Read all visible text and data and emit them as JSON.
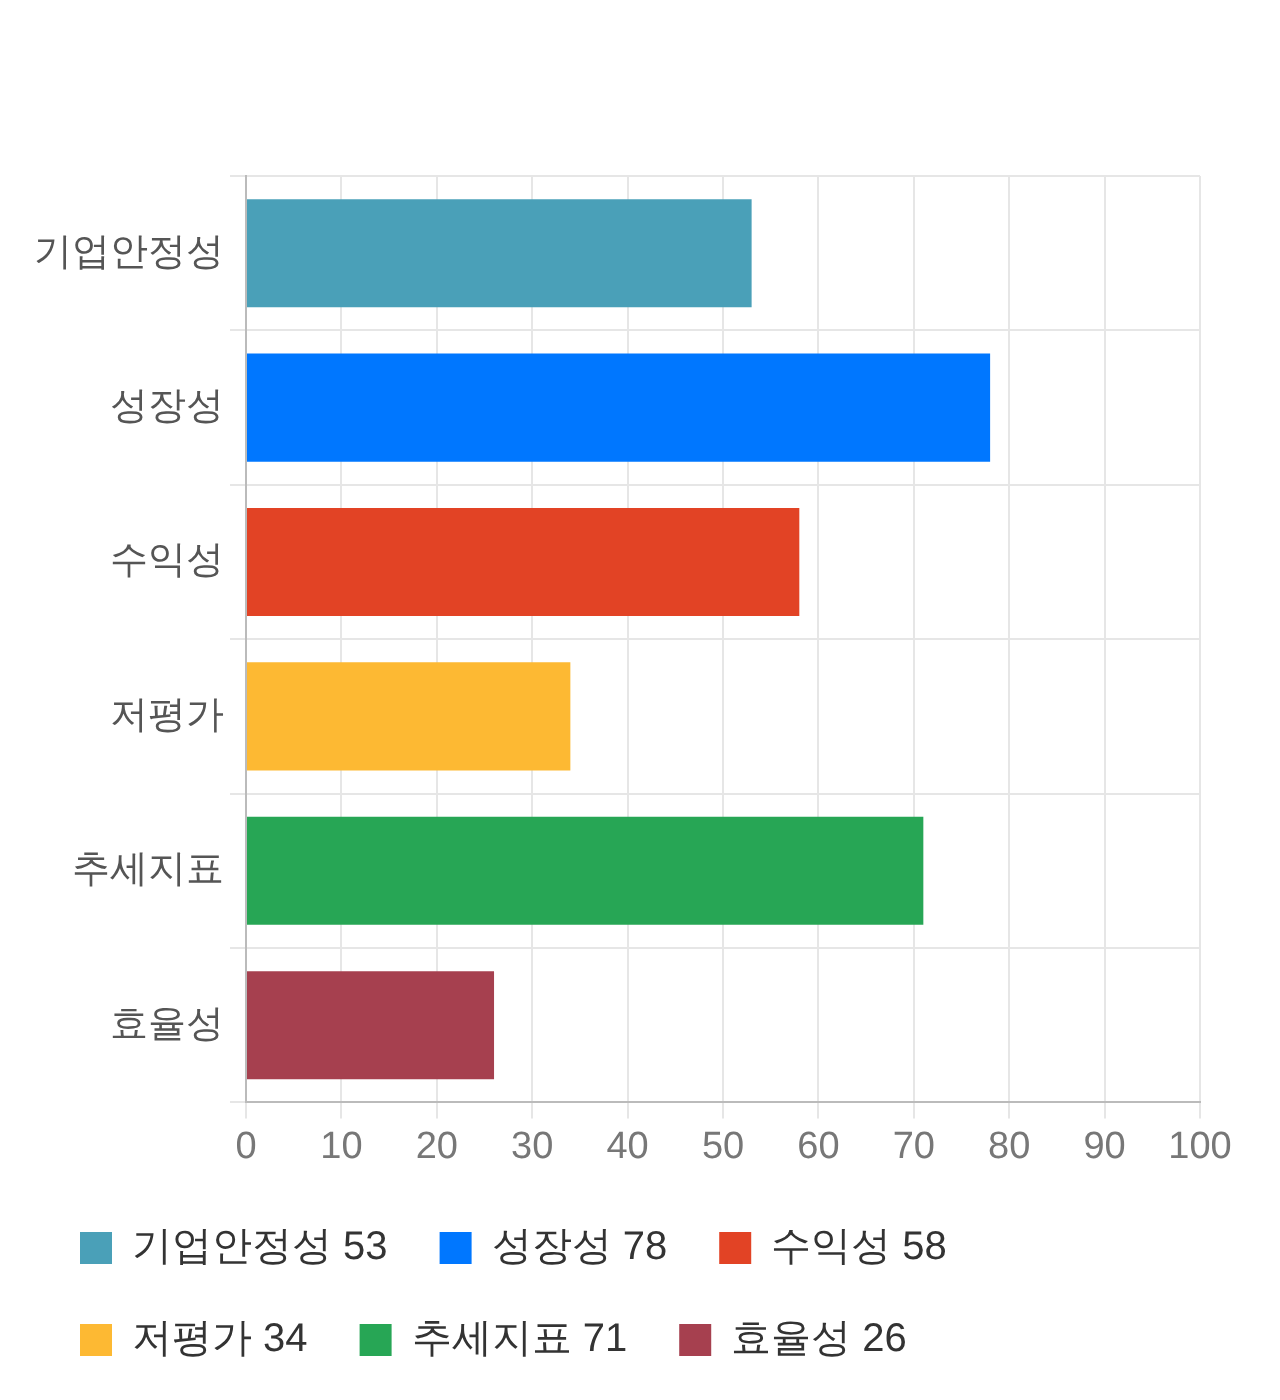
{
  "chart_data": {
    "type": "bar",
    "orientation": "horizontal",
    "stacked": true,
    "categories": [
      "기업안정성",
      "성장성",
      "수익성",
      "저평가",
      "추세지표",
      "효율성"
    ],
    "series": [
      {
        "name": "기업안정성 53",
        "color": "#4aa0b8",
        "values": [
          53,
          null,
          null,
          null,
          null,
          null
        ]
      },
      {
        "name": "성장성 78",
        "color": "#0077ff",
        "values": [
          null,
          78,
          null,
          null,
          null,
          null
        ]
      },
      {
        "name": "수익성 58",
        "color": "#e24325",
        "values": [
          null,
          null,
          58,
          null,
          null,
          null
        ]
      },
      {
        "name": "저평가 34",
        "color": "#fdb933",
        "values": [
          null,
          null,
          null,
          34,
          null,
          null
        ]
      },
      {
        "name": "추세지표 71",
        "color": "#27a655",
        "values": [
          null,
          null,
          null,
          null,
          71,
          null
        ]
      },
      {
        "name": "효율성 26",
        "color": "#a6404f",
        "values": [
          null,
          null,
          null,
          null,
          null,
          26
        ]
      }
    ],
    "xlim": [
      0,
      100
    ],
    "xticks": [
      0,
      10,
      20,
      30,
      40,
      50,
      60,
      70,
      80,
      90,
      100
    ],
    "grid": true,
    "legend": "bottom"
  }
}
